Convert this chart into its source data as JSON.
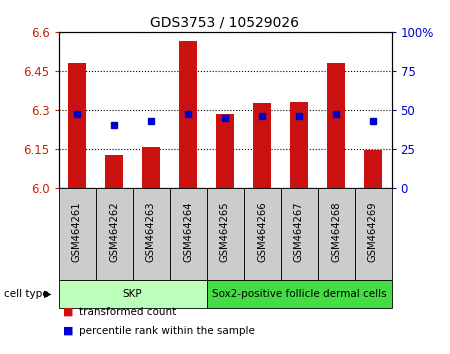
{
  "title": "GDS3753 / 10529026",
  "samples": [
    "GSM464261",
    "GSM464262",
    "GSM464263",
    "GSM464264",
    "GSM464265",
    "GSM464266",
    "GSM464267",
    "GSM464268",
    "GSM464269"
  ],
  "transformed_counts": [
    6.48,
    6.125,
    6.155,
    6.565,
    6.285,
    6.325,
    6.33,
    6.48,
    6.145
  ],
  "percentile_ranks": [
    6.285,
    6.24,
    6.255,
    6.285,
    6.27,
    6.275,
    6.275,
    6.285,
    6.255
  ],
  "ymin": 6.0,
  "ymax": 6.6,
  "y2min": 0,
  "y2max": 100,
  "yticks_left": [
    6.0,
    6.15,
    6.3,
    6.45,
    6.6
  ],
  "yticks_right": [
    0,
    25,
    50,
    75,
    100
  ],
  "cell_groups": [
    {
      "label": "SKP",
      "start": 0,
      "end": 3,
      "color": "#bbffbb"
    },
    {
      "label": "Sox2-positive follicle dermal cells",
      "start": 4,
      "end": 8,
      "color": "#44dd44"
    }
  ],
  "bar_color": "#cc1111",
  "marker_color": "#0000cc",
  "bar_width": 0.5,
  "label_color_left": "#cc2200",
  "label_color_right": "#0000cc",
  "sample_box_color": "#cccccc",
  "cell_type_label": "cell type",
  "legend_items": [
    {
      "label": "transformed count",
      "color": "#cc1111"
    },
    {
      "label": "percentile rank within the sample",
      "color": "#0000cc"
    }
  ]
}
